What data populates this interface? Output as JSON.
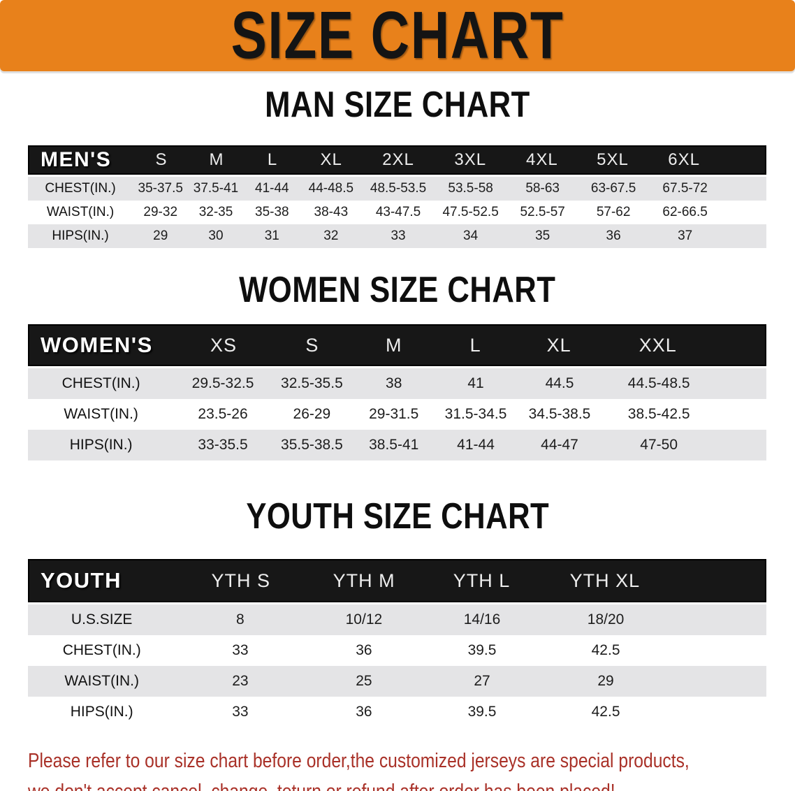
{
  "banner": {
    "title": "SIZE CHART"
  },
  "sections": [
    {
      "id": "men",
      "title": "MAN SIZE CHART",
      "table": {
        "header": [
          "MEN'S",
          "S",
          "M",
          "L",
          "XL",
          "2XL",
          "3XL",
          "4XL",
          "5XL",
          "6XL"
        ],
        "rows": [
          {
            "label": "CHEST(IN.)",
            "values": [
              "35-37.5",
              "37.5-41",
              "41-44",
              "44-48.5",
              "48.5-53.5",
              "53.5-58",
              "58-63",
              "63-67.5",
              "67.5-72"
            ]
          },
          {
            "label": "WAIST(IN.)",
            "values": [
              "29-32",
              "32-35",
              "35-38",
              "38-43",
              "43-47.5",
              "47.5-52.5",
              "52.5-57",
              "57-62",
              "62-66.5"
            ]
          },
          {
            "label": "HIPS(IN.)",
            "values": [
              "29",
              "30",
              "31",
              "32",
              "33",
              "34",
              "35",
              "36",
              "37"
            ]
          }
        ]
      }
    },
    {
      "id": "women",
      "title": "WOMEN SIZE CHART",
      "table": {
        "header": [
          "WOMEN'S",
          "XS",
          "S",
          "M",
          "L",
          "XL",
          "XXL"
        ],
        "rows": [
          {
            "label": "CHEST(IN.)",
            "values": [
              "29.5-32.5",
              "32.5-35.5",
              "38",
              "41",
              "44.5",
              "44.5-48.5"
            ]
          },
          {
            "label": "WAIST(IN.)",
            "values": [
              "23.5-26",
              "26-29",
              "29-31.5",
              "31.5-34.5",
              "34.5-38.5",
              "38.5-42.5"
            ]
          },
          {
            "label": "HIPS(IN.)",
            "values": [
              "33-35.5",
              "35.5-38.5",
              "38.5-41",
              "41-44",
              "44-47",
              "47-50"
            ]
          }
        ]
      }
    },
    {
      "id": "youth",
      "title": "YOUTH SIZE CHART",
      "table": {
        "header": [
          "YOUTH",
          "YTH S",
          "YTH M",
          "YTH L",
          "YTH XL"
        ],
        "rows": [
          {
            "label": "U.S.SIZE",
            "values": [
              "8",
              "10/12",
              "14/16",
              "18/20"
            ]
          },
          {
            "label": "CHEST(IN.)",
            "values": [
              "33",
              "36",
              "39.5",
              "42.5"
            ]
          },
          {
            "label": "WAIST(IN.)",
            "values": [
              "23",
              "25",
              "27",
              "29"
            ]
          },
          {
            "label": "HIPS(IN.)",
            "values": [
              "33",
              "36",
              "39.5",
              "42.5"
            ]
          }
        ]
      }
    }
  ],
  "disclaimer": {
    "line1": "Please refer to our size chart before order,the customized jerseys are special products,",
    "line2": "we don't accept cancel, change, teturn or refund after order has been placed!"
  },
  "colors": {
    "banner_orange": "#E8811B",
    "header_black": "#171717",
    "stripe_gray": "#E4E4E6",
    "disclaimer_red": "#A93128"
  }
}
